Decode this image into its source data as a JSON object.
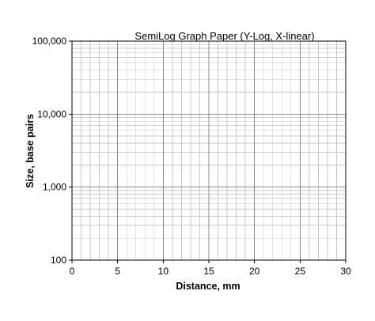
{
  "chart_data": {
    "type": "scatter",
    "title": "SemiLog Graph Paper (Y-Log, X-linear)",
    "xlabel": "Distance, mm",
    "ylabel": "Size, base pairs",
    "x_scale": "linear",
    "y_scale": "log",
    "xlim": [
      0,
      30
    ],
    "ylim": [
      100,
      100000
    ],
    "x_ticks": [
      0,
      5,
      10,
      15,
      20,
      25,
      30
    ],
    "x_tick_labels": [
      "0",
      "5",
      "10",
      "15",
      "20",
      "25",
      "30"
    ],
    "y_ticks": [
      100,
      1000,
      10000,
      100000
    ],
    "y_tick_labels": [
      "100",
      "1,000",
      "10,000",
      "100,000"
    ],
    "x_minor_step": 1,
    "grid": true,
    "legend": "none",
    "series": []
  },
  "colors": {
    "major_grid": "#8c8c8c",
    "minor_grid": "#c8c8c8",
    "frame": "#000000"
  }
}
